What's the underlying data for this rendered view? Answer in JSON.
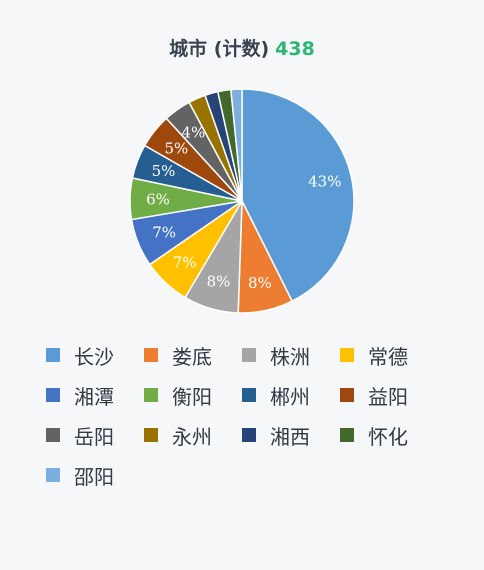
{
  "title": {
    "text": "城市 (计数)",
    "count": "438"
  },
  "chart_data": {
    "type": "pie",
    "title": "城市 (计数) 438",
    "total": 438,
    "categories": [
      "长沙",
      "娄底",
      "株洲",
      "常德",
      "湘潭",
      "衡阳",
      "郴州",
      "益阳",
      "岳阳",
      "永州",
      "湘西",
      "怀化",
      "邵阳"
    ],
    "values": [
      43,
      8,
      8,
      7,
      7,
      6,
      5,
      5,
      4,
      2.5,
      1.9,
      1.9,
      1.6
    ],
    "data_labels": [
      "43%",
      "8%",
      "8%",
      "7%",
      "7%",
      "6%",
      "5%",
      "5%",
      "4%",
      "",
      "",
      "",
      ""
    ],
    "colors": [
      "#5b9bd5",
      "#ed7d31",
      "#a5a5a5",
      "#ffc000",
      "#4472c4",
      "#70ad47",
      "#255e91",
      "#9e480e",
      "#636363",
      "#997300",
      "#264478",
      "#43682b",
      "#7cafdd"
    ],
    "legend_position": "bottom"
  }
}
